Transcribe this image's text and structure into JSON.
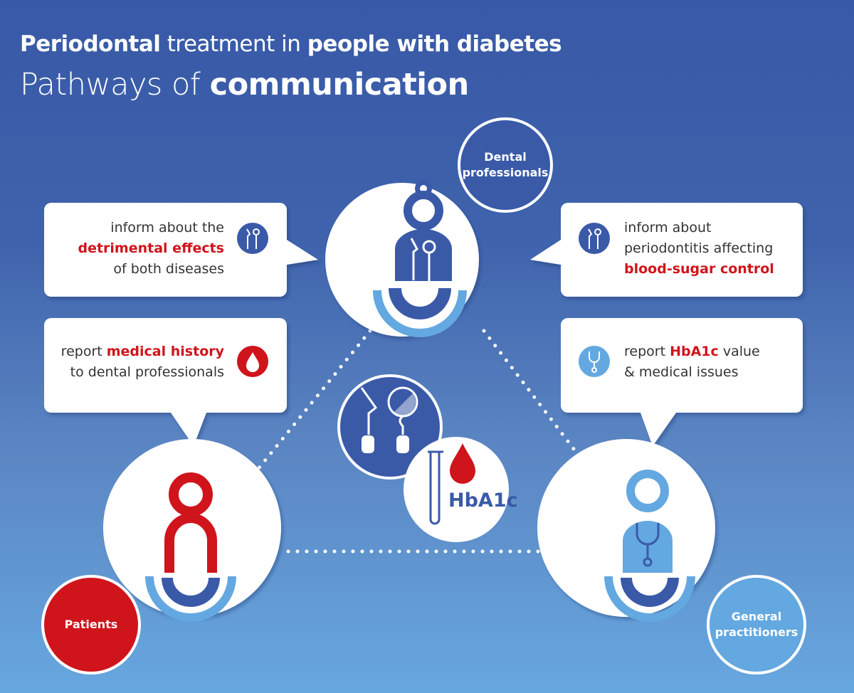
{
  "title": {
    "line1": [
      {
        "text": "Periodontal",
        "bold": true
      },
      {
        "text": " treatment in ",
        "bold": false
      },
      {
        "text": "people with diabetes",
        "bold": true
      }
    ],
    "line2": [
      {
        "text": "Pathways of ",
        "bold": false
      },
      {
        "text": "communication",
        "bold": true
      }
    ]
  },
  "actors": {
    "dental": {
      "label_1": "Dental",
      "label_2": "professionals",
      "color": "#3a5aa8"
    },
    "patients": {
      "label": "Patients",
      "color": "#d0141b"
    },
    "gp": {
      "label_1": "General",
      "label_2": "practitioners",
      "color": "#5fa3dc"
    }
  },
  "bubbles": {
    "dental_to_patients": {
      "l1": "inform about the",
      "l2": "detrimental effects",
      "l3": "of both diseases",
      "icon": "dental-instruments-icon"
    },
    "dental_to_gp": {
      "l1": "inform about",
      "l2": "periodontitis affecting",
      "l3": "blood-sugar control",
      "icon": "dental-instruments-icon"
    },
    "patients_to_dental": {
      "l1a": "report ",
      "l1b": "medical history",
      "l2": "to dental professionals",
      "icon": "blood-drop-icon"
    },
    "gp_to_dental": {
      "l1a": "report ",
      "l1b": "HbA1c",
      "l1c": " value",
      "l2": "& medical issues",
      "icon": "stethoscope-icon"
    }
  },
  "center": {
    "hba1c_label": "HbA1c"
  },
  "colors": {
    "dark_blue": "#3a5aa8",
    "light_blue": "#63a8e0",
    "red": "#d0141b"
  }
}
